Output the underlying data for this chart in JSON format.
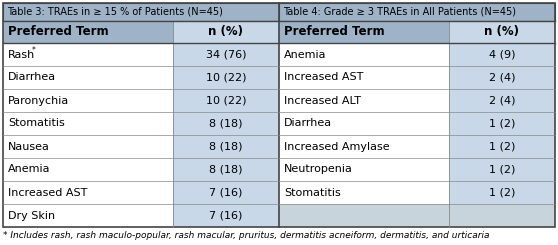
{
  "table3_title": "Table 3: TRAEs in ≥ 15 % of Patients (N=45)",
  "table4_title": "Table 4: Grade ≥ 3 TRAEs in All Patients (N=45)",
  "col_headers": [
    "Preferred Term",
    "n (%)"
  ],
  "table3_rows": [
    [
      "Rash*",
      "34 (76)"
    ],
    [
      "Diarrhea",
      "10 (22)"
    ],
    [
      "Paronychia",
      "10 (22)"
    ],
    [
      "Stomatitis",
      "8 (18)"
    ],
    [
      "Nausea",
      "8 (18)"
    ],
    [
      "Anemia",
      "8 (18)"
    ],
    [
      "Increased AST",
      "7 (16)"
    ],
    [
      "Dry Skin",
      "7 (16)"
    ]
  ],
  "table4_rows": [
    [
      "Anemia",
      "4 (9)"
    ],
    [
      "Increased AST",
      "2 (4)"
    ],
    [
      "Increased ALT",
      "2 (4)"
    ],
    [
      "Diarrhea",
      "1 (2)"
    ],
    [
      "Increased Amylase",
      "1 (2)"
    ],
    [
      "Neutropenia",
      "1 (2)"
    ],
    [
      "Stomatitis",
      "1 (2)"
    ],
    [
      "",
      ""
    ]
  ],
  "footnote": "* Includes rash, rash maculo-popular, rash macular, pruritus, dermatitis acneiform, dermatitis, and urticaria",
  "title_bg": "#9EB3C8",
  "header_bg": "#9EB3C8",
  "col2_bg": "#C8D8E8",
  "col4_bg": "#C8D8E8",
  "last_row_right_bg": "#C8D4DC",
  "white_bg": "#FFFFFF",
  "border_dark": "#444444",
  "border_light": "#888888",
  "title_fontsize": 7.0,
  "header_fontsize": 8.5,
  "cell_fontsize": 8.0,
  "footnote_fontsize": 6.5
}
